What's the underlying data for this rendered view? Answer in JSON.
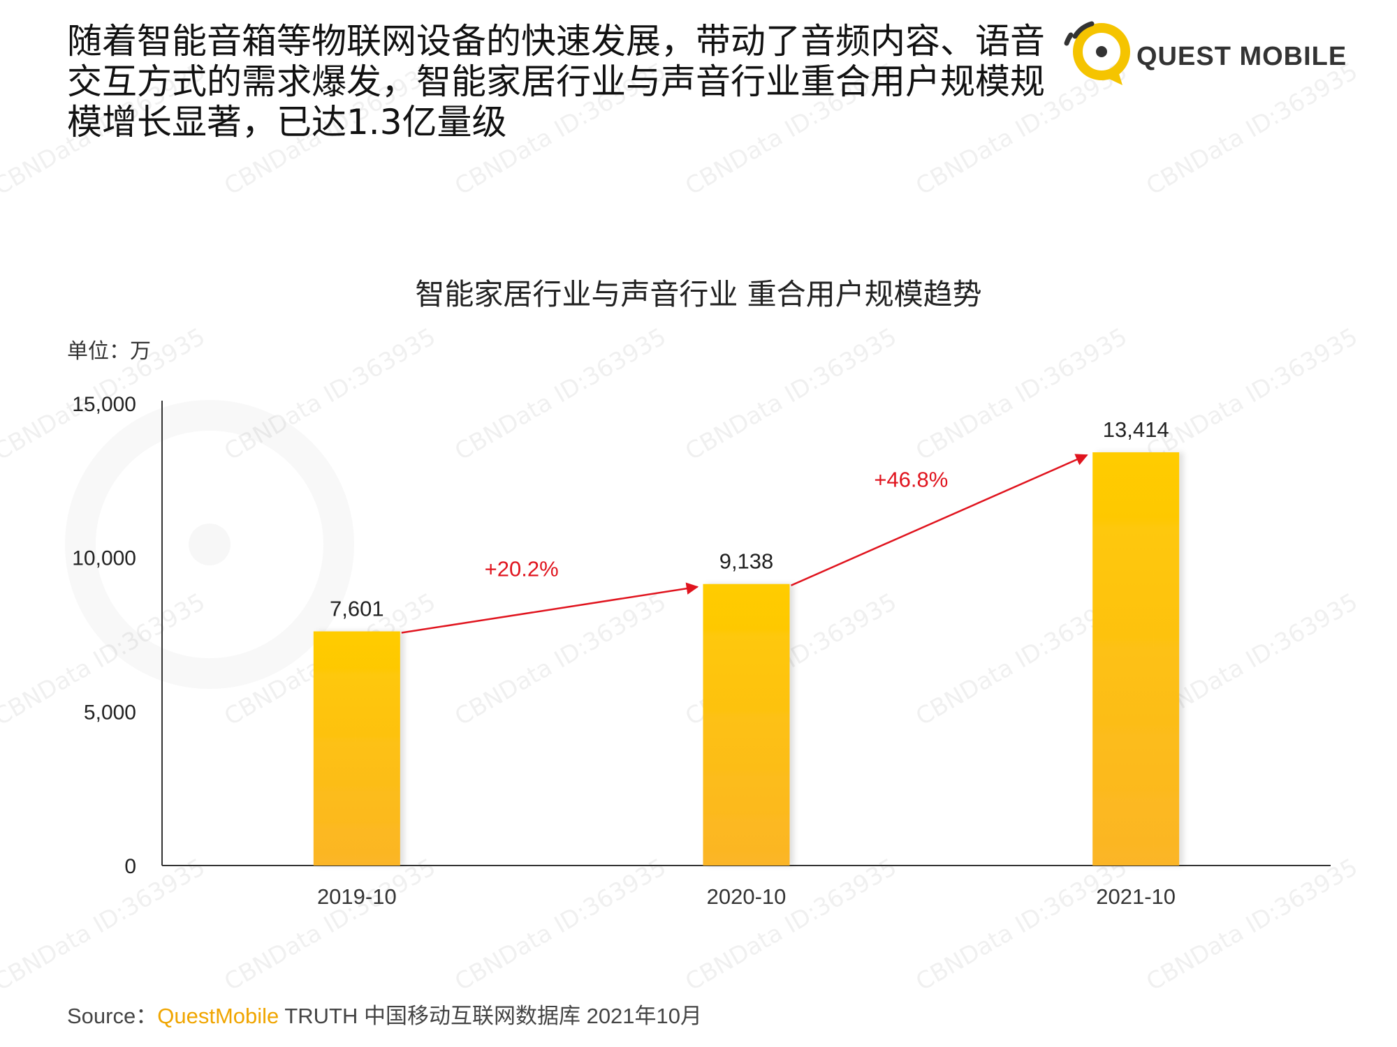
{
  "headline": "随着智能音箱等物联网设备的快速发展，带动了音频内容、语音交互方式的需求爆发，智能家居行业与声音行业重合用户规模规模增长显著，已达1.3亿量级",
  "brand": {
    "logo_text": "QUEST MOBILE",
    "accent_color": "#f5c400"
  },
  "chart_data": {
    "type": "bar",
    "title": "智能家居行业与声音行业 重合用户规模趋势",
    "unit_label": "单位：万",
    "categories": [
      "2019-10",
      "2020-10",
      "2021-10"
    ],
    "values": [
      7601,
      9138,
      13414
    ],
    "value_labels": [
      "7,601",
      "9,138",
      "13,414"
    ],
    "ylim": [
      0,
      15000
    ],
    "yticks": [
      0,
      5000,
      10000,
      15000
    ],
    "ytick_labels": [
      "0",
      "5,000",
      "10,000",
      "15,000"
    ],
    "growth": [
      {
        "from": 0,
        "to": 1,
        "label": "+20.2%"
      },
      {
        "from": 1,
        "to": 2,
        "label": "+46.8%"
      }
    ],
    "bar_color_top": "#ffcc00",
    "bar_color_bottom": "#fbb526",
    "arrow_color": "#e0141e",
    "grid": false
  },
  "watermark": "CBNData ID:363935",
  "source": {
    "prefix": "Source：",
    "brand": "QuestMobile",
    "rest": " TRUTH 中国移动互联网数据库 2021年10月"
  }
}
